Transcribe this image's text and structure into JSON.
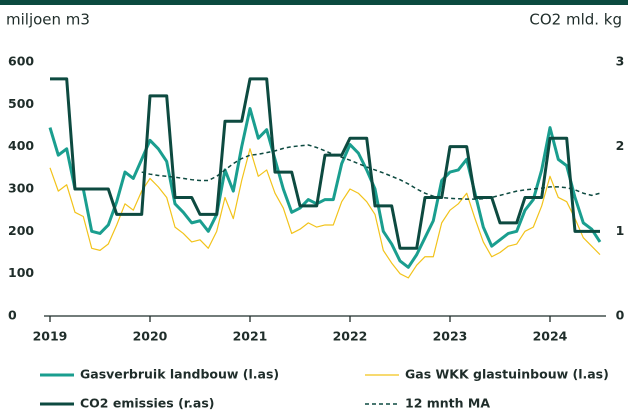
{
  "chart_data": {
    "type": "line",
    "y_label": "miljoen m3",
    "y2_label": "CO2 mld. kg",
    "x": [
      2019,
      2019.083,
      2019.167,
      2019.25,
      2019.333,
      2019.417,
      2019.5,
      2019.583,
      2019.667,
      2019.75,
      2019.833,
      2019.917,
      2020,
      2020.083,
      2020.167,
      2020.25,
      2020.333,
      2020.417,
      2020.5,
      2020.583,
      2020.667,
      2020.75,
      2020.833,
      2020.917,
      2021,
      2021.083,
      2021.167,
      2021.25,
      2021.333,
      2021.417,
      2021.5,
      2021.583,
      2021.667,
      2021.75,
      2021.833,
      2021.917,
      2022,
      2022.083,
      2022.167,
      2022.25,
      2022.333,
      2022.417,
      2022.5,
      2022.583,
      2022.667,
      2022.75,
      2022.833,
      2022.917,
      2023,
      2023.083,
      2023.167,
      2023.25,
      2023.333,
      2023.417,
      2023.5,
      2023.583,
      2023.667,
      2023.75,
      2023.833,
      2023.917,
      2024,
      2024.083,
      2024.167,
      2024.25,
      2024.333,
      2024.417,
      2024.5
    ],
    "xlim": [
      2019,
      2024.5
    ],
    "xticks": [
      2019,
      2020,
      2021,
      2022,
      2023,
      2024
    ],
    "ylim": [
      0,
      600
    ],
    "yticks": [
      0,
      100,
      200,
      300,
      400,
      500,
      600
    ],
    "y2lim": [
      0,
      3
    ],
    "y2ticks": [
      0,
      1,
      2,
      3
    ],
    "grid": false,
    "series": [
      {
        "name": "Gasverbruik landbouw (l.as)",
        "color": "#1a9e8f",
        "values": [
          445,
          380,
          395,
          300,
          300,
          200,
          195,
          215,
          270,
          340,
          325,
          370,
          415,
          395,
          365,
          265,
          245,
          220,
          225,
          200,
          240,
          345,
          295,
          400,
          490,
          420,
          440,
          370,
          300,
          245,
          255,
          275,
          265,
          275,
          275,
          360,
          405,
          385,
          345,
          300,
          200,
          170,
          130,
          115,
          145,
          185,
          225,
          320,
          340,
          345,
          370,
          290,
          210,
          165,
          180,
          195,
          200,
          250,
          275,
          345,
          445,
          370,
          355,
          280,
          220,
          205,
          175
        ]
      },
      {
        "name": "Gas WKK glastuinbouw (l.as)",
        "color": "#f2c31b",
        "values": [
          350,
          295,
          310,
          245,
          235,
          160,
          155,
          170,
          215,
          265,
          250,
          295,
          325,
          305,
          280,
          210,
          195,
          175,
          180,
          160,
          200,
          280,
          230,
          320,
          395,
          330,
          345,
          290,
          255,
          195,
          205,
          220,
          210,
          215,
          215,
          270,
          300,
          290,
          270,
          240,
          155,
          125,
          100,
          90,
          120,
          140,
          140,
          220,
          250,
          265,
          290,
          230,
          175,
          140,
          150,
          165,
          170,
          200,
          210,
          260,
          330,
          280,
          270,
          230,
          185,
          165,
          145
        ]
      },
      {
        "name": "CO2 emissies (r.as)",
        "color": "#0d4a40",
        "axis": "y2",
        "values": [
          2.8,
          2.8,
          2.8,
          1.5,
          1.5,
          1.5,
          1.5,
          1.5,
          1.2,
          1.2,
          1.2,
          1.2,
          2.6,
          2.6,
          2.6,
          1.4,
          1.4,
          1.4,
          1.2,
          1.2,
          1.2,
          2.3,
          2.3,
          2.3,
          2.8,
          2.8,
          2.8,
          1.7,
          1.7,
          1.7,
          1.3,
          1.3,
          1.3,
          1.9,
          1.9,
          1.9,
          2.1,
          2.1,
          2.1,
          1.3,
          1.3,
          1.3,
          0.8,
          0.8,
          0.8,
          1.4,
          1.4,
          1.4,
          2.0,
          2.0,
          2.0,
          1.4,
          1.4,
          1.4,
          1.1,
          1.1,
          1.1,
          1.4,
          1.4,
          1.4,
          2.1,
          2.1,
          2.1,
          1.0,
          1.0,
          1.0,
          1.0
        ]
      },
      {
        "name": "12 mnth MA",
        "color": "#0d4a40",
        "style": "dashed",
        "values": [
          null,
          null,
          null,
          null,
          null,
          null,
          null,
          null,
          null,
          null,
          null,
          340,
          335,
          332,
          330,
          328,
          325,
          322,
          320,
          320,
          330,
          345,
          360,
          372,
          380,
          382,
          386,
          390,
          396,
          400,
          402,
          404,
          398,
          390,
          382,
          375,
          368,
          360,
          352,
          345,
          338,
          330,
          322,
          312,
          300,
          290,
          283,
          280,
          278,
          277,
          276,
          276,
          277,
          280,
          285,
          290,
          295,
          298,
          300,
          302,
          305,
          305,
          303,
          298,
          290,
          285,
          290
        ]
      }
    ]
  }
}
